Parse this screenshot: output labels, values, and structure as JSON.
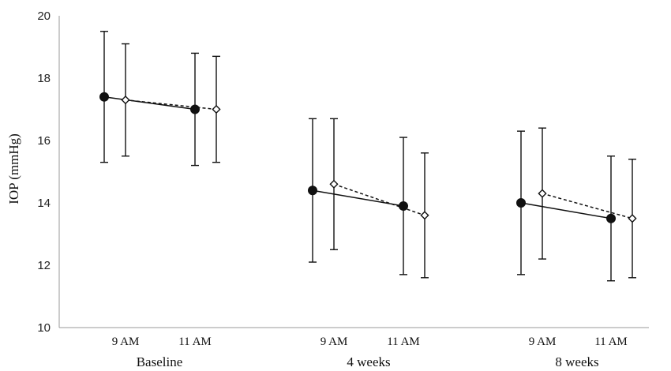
{
  "chart_data": {
    "type": "line",
    "title": "",
    "xlabel": "",
    "ylabel": "IOP (mmHg)",
    "ylim": [
      10,
      20
    ],
    "yticks": [
      "10",
      "12",
      "14",
      "16",
      "18",
      "20"
    ],
    "groups": [
      {
        "label": "Baseline",
        "times": [
          "9 AM",
          "11 AM"
        ]
      },
      {
        "label": "4 weeks",
        "times": [
          "9 AM",
          "11 AM"
        ]
      },
      {
        "label": "8 weeks",
        "times": [
          "9 AM",
          "11 AM"
        ]
      }
    ],
    "legend": "none",
    "grid": false,
    "series": [
      {
        "marker": "filled-circle",
        "line_style": "solid",
        "color": "#111111",
        "points": [
          {
            "group": 0,
            "time": 0,
            "mean": 17.4,
            "low": 15.3,
            "high": 19.5
          },
          {
            "group": 0,
            "time": 1,
            "mean": 17.0,
            "low": 15.2,
            "high": 18.8
          },
          {
            "group": 1,
            "time": 0,
            "mean": 14.4,
            "low": 12.1,
            "high": 16.7
          },
          {
            "group": 1,
            "time": 1,
            "mean": 13.9,
            "low": 11.7,
            "high": 16.1
          },
          {
            "group": 2,
            "time": 0,
            "mean": 14.0,
            "low": 11.7,
            "high": 16.3
          },
          {
            "group": 2,
            "time": 1,
            "mean": 13.5,
            "low": 11.5,
            "high": 15.5
          }
        ]
      },
      {
        "marker": "open-diamond",
        "line_style": "dashed",
        "color": "#111111",
        "points": [
          {
            "group": 0,
            "time": 0,
            "mean": 17.3,
            "low": 15.5,
            "high": 19.1
          },
          {
            "group": 0,
            "time": 1,
            "mean": 17.0,
            "low": 15.3,
            "high": 18.7
          },
          {
            "group": 1,
            "time": 0,
            "mean": 14.6,
            "low": 12.5,
            "high": 16.7
          },
          {
            "group": 1,
            "time": 1,
            "mean": 13.6,
            "low": 11.6,
            "high": 15.6
          },
          {
            "group": 2,
            "time": 0,
            "mean": 14.3,
            "low": 12.2,
            "high": 16.4
          },
          {
            "group": 2,
            "time": 1,
            "mean": 13.5,
            "low": 11.6,
            "high": 15.4
          }
        ]
      }
    ]
  }
}
